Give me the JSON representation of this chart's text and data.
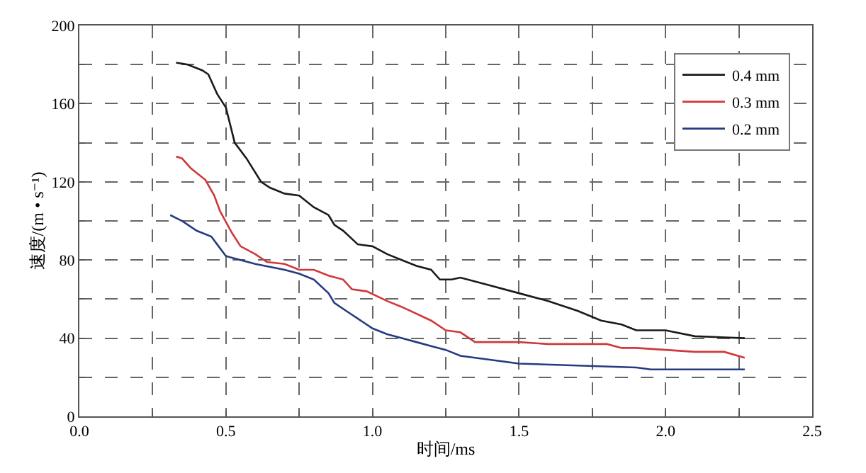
{
  "chart_data": {
    "type": "line",
    "xlabel": "时间/ms",
    "ylabel": "速度/(m • s⁻¹)",
    "xlim": [
      0,
      2.5
    ],
    "ylim": [
      0,
      200
    ],
    "xticks": [
      {
        "value": 0,
        "label": "0.0"
      },
      {
        "value": 0.25,
        "label": null
      },
      {
        "value": 0.5,
        "label": "0.5"
      },
      {
        "value": 0.75,
        "label": null
      },
      {
        "value": 1,
        "label": "1.0"
      },
      {
        "value": 1.25,
        "label": null
      },
      {
        "value": 1.5,
        "label": "1.5"
      },
      {
        "value": 1.75,
        "label": null
      },
      {
        "value": 2,
        "label": "2.0"
      },
      {
        "value": 2.25,
        "label": null
      },
      {
        "value": 2.5,
        "label": "2.5"
      }
    ],
    "yticks": [
      0,
      {
        "value": 20,
        "label": null
      },
      40,
      {
        "value": 60,
        "label": null
      },
      80,
      {
        "value": 100,
        "label": null
      },
      120,
      {
        "value": 140,
        "label": null
      },
      160,
      {
        "value": 180,
        "label": null
      },
      200
    ],
    "grid": true,
    "legend": "top right",
    "line_style": "solid",
    "marker": "none",
    "series": [
      {
        "name": "0.4 mm",
        "color": "#1a1a1a",
        "x": [
          0.33,
          0.37,
          0.42,
          0.44,
          0.47,
          0.5,
          0.53,
          0.57,
          0.62,
          0.65,
          0.7,
          0.75,
          0.8,
          0.85,
          0.87,
          0.9,
          0.95,
          1.0,
          1.05,
          1.1,
          1.15,
          1.2,
          1.23,
          1.27,
          1.3,
          1.4,
          1.5,
          1.6,
          1.7,
          1.78,
          1.85,
          1.9,
          2.0,
          2.1,
          2.27
        ],
        "values": [
          181,
          180,
          177,
          175,
          165,
          158,
          140,
          132,
          120,
          117,
          114,
          113,
          107,
          103,
          98,
          95,
          88,
          87,
          83,
          80,
          77,
          75,
          70,
          70,
          71,
          67,
          63,
          59,
          54,
          49,
          47,
          44,
          44,
          41,
          40
        ]
      },
      {
        "name": "0.3 mm",
        "color": "#d0383c",
        "x": [
          0.33,
          0.35,
          0.38,
          0.43,
          0.46,
          0.48,
          0.52,
          0.55,
          0.6,
          0.64,
          0.7,
          0.75,
          0.8,
          0.85,
          0.9,
          0.93,
          0.98,
          1.05,
          1.1,
          1.2,
          1.25,
          1.3,
          1.35,
          1.4,
          1.5,
          1.6,
          1.7,
          1.8,
          1.85,
          1.9,
          2.0,
          2.1,
          2.2,
          2.27
        ],
        "values": [
          133,
          132,
          127,
          121,
          113,
          105,
          94,
          87,
          83,
          79,
          78,
          75,
          75,
          72,
          70,
          65,
          64,
          59,
          56,
          49,
          44,
          43,
          38,
          38,
          38,
          37,
          37,
          37,
          35,
          35,
          34,
          33,
          33,
          30
        ]
      },
      {
        "name": "0.2 mm",
        "color": "#263a80",
        "x": [
          0.31,
          0.35,
          0.4,
          0.45,
          0.48,
          0.5,
          0.55,
          0.6,
          0.7,
          0.75,
          0.8,
          0.85,
          0.87,
          0.92,
          0.97,
          1.0,
          1.05,
          1.1,
          1.15,
          1.2,
          1.25,
          1.3,
          1.4,
          1.5,
          1.7,
          1.9,
          1.95,
          2.27
        ],
        "values": [
          103,
          100,
          95,
          92,
          86,
          82,
          80,
          78,
          75,
          73,
          70,
          63,
          58,
          53,
          48,
          45,
          42,
          40,
          38,
          36,
          34,
          31,
          29,
          27,
          26,
          25,
          24,
          24
        ]
      }
    ]
  }
}
